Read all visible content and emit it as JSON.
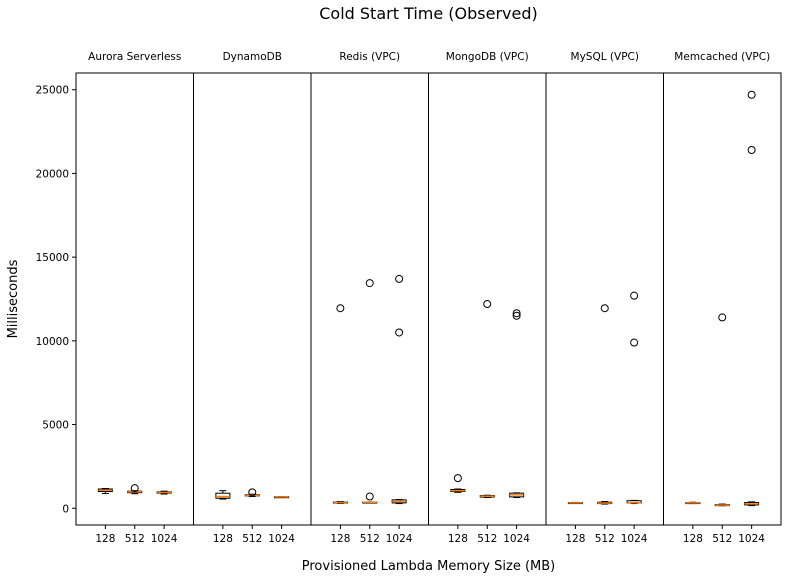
{
  "chart_data": {
    "type": "boxplot",
    "title": "Cold Start Time (Observed)",
    "xlabel": "Provisioned Lambda Memory Size (MB)",
    "ylabel": "Milliseconds",
    "ylim": [
      -1000,
      26000
    ],
    "yticks": [
      0,
      5000,
      10000,
      15000,
      20000,
      25000
    ],
    "categories": [
      "128",
      "512",
      "1024"
    ],
    "colors": {
      "box": "#000000",
      "median": "#ff7f0e",
      "flier": "#000000"
    },
    "panels": [
      {
        "name": "Aurora Serverless",
        "boxes": [
          {
            "category": "128",
            "whislo": 880,
            "q1": 1000,
            "med": 1080,
            "q3": 1150,
            "whishi": 1180,
            "fliers": []
          },
          {
            "category": "512",
            "whislo": 870,
            "q1": 930,
            "med": 980,
            "q3": 1020,
            "whishi": 1050,
            "fliers": [
              1200
            ]
          },
          {
            "category": "1024",
            "whislo": 850,
            "q1": 900,
            "med": 940,
            "q3": 980,
            "whishi": 1020,
            "fliers": []
          }
        ]
      },
      {
        "name": "DynamoDB",
        "boxes": [
          {
            "category": "128",
            "whislo": 550,
            "q1": 600,
            "med": 700,
            "q3": 900,
            "whishi": 1050,
            "fliers": []
          },
          {
            "category": "512",
            "whislo": 700,
            "q1": 740,
            "med": 770,
            "q3": 810,
            "whishi": 840,
            "fliers": [
              950
            ]
          },
          {
            "category": "1024",
            "whislo": 660,
            "q1": 670,
            "med": 680,
            "q3": 690,
            "whishi": 700,
            "fliers": []
          }
        ]
      },
      {
        "name": "Redis (VPC)",
        "boxes": [
          {
            "category": "128",
            "whislo": 290,
            "q1": 310,
            "med": 340,
            "q3": 370,
            "whishi": 400,
            "fliers": [
              11950
            ]
          },
          {
            "category": "512",
            "whislo": 330,
            "q1": 340,
            "med": 355,
            "q3": 370,
            "whishi": 380,
            "fliers": [
              13450,
              700
            ]
          },
          {
            "category": "1024",
            "whislo": 280,
            "q1": 320,
            "med": 400,
            "q3": 500,
            "whishi": 520,
            "fliers": [
              13700,
              10500
            ]
          }
        ]
      },
      {
        "name": "MongoDB (VPC)",
        "boxes": [
          {
            "category": "128",
            "whislo": 950,
            "q1": 1000,
            "med": 1050,
            "q3": 1120,
            "whishi": 1150,
            "fliers": [
              1800
            ]
          },
          {
            "category": "512",
            "whislo": 640,
            "q1": 670,
            "med": 720,
            "q3": 760,
            "whishi": 780,
            "fliers": [
              12200
            ]
          },
          {
            "category": "1024",
            "whislo": 640,
            "q1": 680,
            "med": 800,
            "q3": 900,
            "whishi": 920,
            "fliers": [
              11650,
              11500
            ]
          }
        ]
      },
      {
        "name": "MySQL (VPC)",
        "boxes": [
          {
            "category": "128",
            "whislo": 290,
            "q1": 300,
            "med": 320,
            "q3": 340,
            "whishi": 350,
            "fliers": []
          },
          {
            "category": "512",
            "whislo": 250,
            "q1": 280,
            "med": 310,
            "q3": 360,
            "whishi": 400,
            "fliers": [
              11950
            ]
          },
          {
            "category": "1024",
            "whislo": 280,
            "q1": 310,
            "med": 330,
            "q3": 450,
            "whishi": 470,
            "fliers": [
              12700,
              9900
            ]
          }
        ]
      },
      {
        "name": "Memcached (VPC)",
        "boxes": [
          {
            "category": "128",
            "whislo": 280,
            "q1": 300,
            "med": 320,
            "q3": 340,
            "whishi": 360,
            "fliers": []
          },
          {
            "category": "512",
            "whislo": 150,
            "q1": 170,
            "med": 190,
            "q3": 220,
            "whishi": 250,
            "fliers": [
              11400
            ]
          },
          {
            "category": "1024",
            "whislo": 160,
            "q1": 200,
            "med": 260,
            "q3": 340,
            "whishi": 380,
            "fliers": [
              24700,
              21400
            ]
          }
        ]
      }
    ]
  }
}
